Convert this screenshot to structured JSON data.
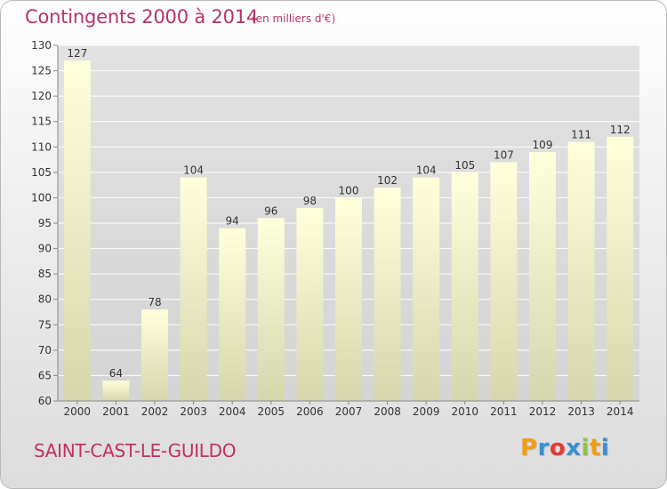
{
  "chart_data": {
    "type": "bar",
    "title": "Contingents 2000 à 2014",
    "subtitle": "(en milliers d'€)",
    "categories": [
      "2000",
      "2001",
      "2002",
      "2003",
      "2004",
      "2005",
      "2006",
      "2007",
      "2008",
      "2009",
      "2010",
      "2011",
      "2012",
      "2013",
      "2014"
    ],
    "values": [
      127,
      64,
      78,
      104,
      94,
      96,
      98,
      100,
      102,
      104,
      105,
      107,
      109,
      111,
      112
    ],
    "ylim": [
      60,
      130
    ],
    "yticks": [
      60,
      65,
      70,
      75,
      80,
      85,
      90,
      95,
      100,
      105,
      110,
      115,
      120,
      125,
      130
    ],
    "grid": true,
    "legend": "none"
  },
  "footer": {
    "commune": "SAINT-CAST-LE-GUILDO"
  },
  "logo": {
    "letters": [
      "P",
      "r",
      "o",
      "x",
      "i",
      "t",
      "i"
    ],
    "colors": [
      "#f39c12",
      "#3a8fd1",
      "#e53935",
      "#3a8fd1",
      "#8bc34a",
      "#f39c12",
      "#3a8fd1"
    ]
  },
  "colors": {
    "title": "#b5346a",
    "bar_top": "#ffffdc",
    "bar_bottom": "#d6d6ad",
    "grid": "#ffffff"
  }
}
